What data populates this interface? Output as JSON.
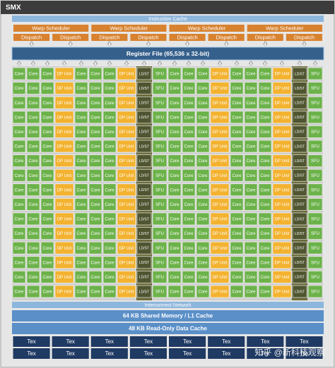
{
  "header": {
    "title": "SMX"
  },
  "instruction_cache": "Instruction Cache",
  "warp_schedulers": [
    "Warp Scheduler",
    "Warp Scheduler",
    "Warp Scheduler",
    "Warp Scheduler"
  ],
  "dispatch_units": [
    "Dispatch",
    "Dispatch",
    "Dispatch",
    "Dispatch",
    "Dispatch",
    "Dispatch",
    "Dispatch",
    "Dispatch"
  ],
  "register_file": "Register File (65,536 x 32-bit)",
  "units": [
    "Core",
    "Core",
    "Core",
    "DP Unit",
    "Core",
    "Core",
    "Core",
    "DP Unit",
    "LD/ST",
    "SFU",
    "Core",
    "Core",
    "Core",
    "DP Unit",
    "Core",
    "Core",
    "Core",
    "DP Unit",
    "LD/ST",
    "SFU"
  ],
  "interconnect": "Interconnect Network",
  "shared_memory": "64 KB Shared Memory / L1 Cache",
  "read_only_cache": "48 KB Read-Only Data Cache",
  "tex_units": [
    "Tex",
    "Tex",
    "Tex",
    "Tex",
    "Tex",
    "Tex",
    "Tex",
    "Tex",
    "Tex",
    "Tex",
    "Tex",
    "Tex",
    "Tex",
    "Tex",
    "Tex",
    "Tex"
  ],
  "watermark": "知乎 @新科技观察"
}
